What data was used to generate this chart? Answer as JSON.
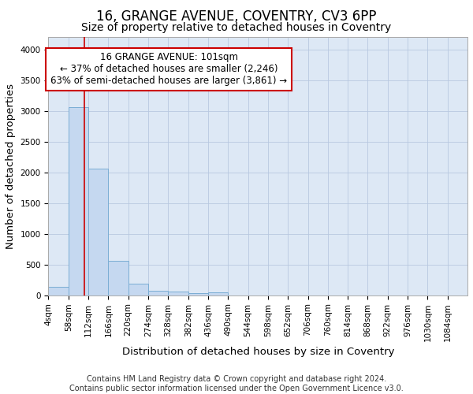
{
  "title": "16, GRANGE AVENUE, COVENTRY, CV3 6PP",
  "subtitle": "Size of property relative to detached houses in Coventry",
  "xlabel": "Distribution of detached houses by size in Coventry",
  "ylabel": "Number of detached properties",
  "footer_line1": "Contains HM Land Registry data © Crown copyright and database right 2024.",
  "footer_line2": "Contains public sector information licensed under the Open Government Licence v3.0.",
  "bin_edges": [
    4,
    58,
    112,
    166,
    220,
    274,
    328,
    382,
    436,
    490,
    544,
    598,
    652,
    706,
    760,
    814,
    868,
    922,
    976,
    1030,
    1084
  ],
  "bar_heights": [
    140,
    3060,
    2060,
    560,
    195,
    75,
    55,
    35,
    50,
    0,
    0,
    0,
    0,
    0,
    0,
    0,
    0,
    0,
    0,
    0
  ],
  "bar_color": "#c5d8f0",
  "bar_edge_color": "#7aadd4",
  "bar_edge_width": 0.7,
  "grid_color": "#b8c8e0",
  "bg_color": "#dde8f5",
  "property_sqm": 101,
  "marker_line_color": "#cc0000",
  "annotation_text_line1": "16 GRANGE AVENUE: 101sqm",
  "annotation_text_line2": "← 37% of detached houses are smaller (2,246)",
  "annotation_text_line3": "63% of semi-detached houses are larger (3,861) →",
  "annotation_box_color": "#cc0000",
  "annotation_bg": "#ffffff",
  "ylim": [
    0,
    4200
  ],
  "yticks": [
    0,
    500,
    1000,
    1500,
    2000,
    2500,
    3000,
    3500,
    4000
  ],
  "title_fontsize": 12,
  "subtitle_fontsize": 10,
  "axis_label_fontsize": 9.5,
  "tick_fontsize": 7.5,
  "footer_fontsize": 7,
  "annotation_fontsize": 8.5
}
